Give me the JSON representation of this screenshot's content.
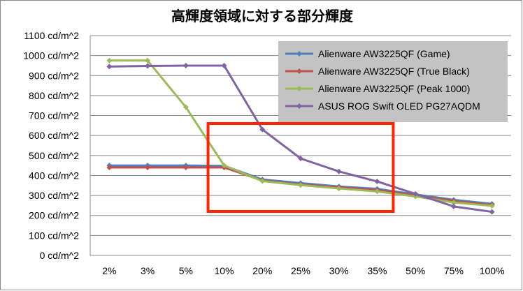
{
  "chart_data": {
    "type": "line",
    "title": "高輝度領域に対する部分輝度",
    "xlabel": "",
    "ylabel": "",
    "categories": [
      "2%",
      "3%",
      "5%",
      "10%",
      "20%",
      "25%",
      "30%",
      "35%",
      "50%",
      "75%",
      "100%"
    ],
    "y_ticks": [
      "0 cd/m^2",
      "100 cd/m^2",
      "200 cd/m^2",
      "300 cd/m^2",
      "400 cd/m^2",
      "500 cd/m^2",
      "600 cd/m^2",
      "700 cd/m^2",
      "800 cd/m^2",
      "900 cd/m^2",
      "1000 cd/m^2",
      "1100 cd/m^2"
    ],
    "ylim": [
      0,
      1100
    ],
    "grid": true,
    "legend_position": "top-right",
    "series": [
      {
        "name": "Alienware AW3225QF (Game)",
        "color": "#4f81bd",
        "values": [
          450,
          450,
          450,
          448,
          380,
          362,
          345,
          333,
          305,
          278,
          258
        ]
      },
      {
        "name": "Alienware AW3225QF (True Black)",
        "color": "#c0504d",
        "values": [
          440,
          440,
          440,
          440,
          375,
          355,
          340,
          327,
          300,
          272,
          252
        ]
      },
      {
        "name": "Alienware AW3225QF (Peak 1000)",
        "color": "#9bbb59",
        "values": [
          975,
          975,
          742,
          450,
          372,
          352,
          335,
          320,
          295,
          265,
          248
        ]
      },
      {
        "name": "ASUS ROG Swift OLED PG27AQDM",
        "color": "#8064a2",
        "values": [
          945,
          948,
          950,
          950,
          630,
          485,
          420,
          370,
          308,
          245,
          218
        ]
      }
    ],
    "annotations": [
      {
        "type": "highlight-rectangle",
        "color": "#ff2600",
        "x_from": "10%",
        "x_to": "35%",
        "y_from": 220,
        "y_to": 660
      }
    ]
  }
}
